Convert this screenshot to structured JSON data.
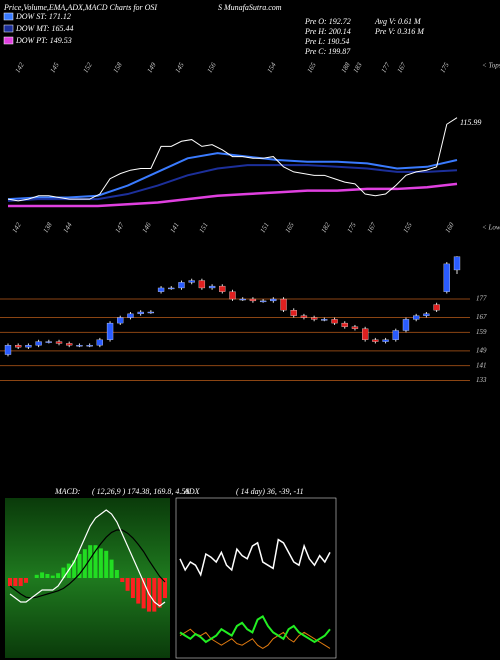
{
  "chart_data": {
    "type": "candlestick",
    "title": "Price,Volume,EMA,ADX,MACD Charts for OSI",
    "subtitle": "S MunafaSutra.com",
    "info": [
      "Pre  O: 192.72",
      "Pre  H: 200.14",
      "Pre  L: 190.54",
      "Pre  C: 199.87",
      "Avg V: 0.61 M",
      "Pre  V: 0.316 M"
    ],
    "series": [
      {
        "name": "DOW ST: 171.12",
        "color": "#3a7bff",
        "values": [
          152,
          153,
          153,
          154,
          160,
          168,
          176,
          179,
          177,
          175,
          174,
          174,
          173,
          170,
          171,
          175
        ]
      },
      {
        "name": "DOW MT: 165.44",
        "color": "#1c2f9a",
        "values": [
          151,
          152,
          152,
          152,
          155,
          160,
          166,
          170,
          172,
          172,
          172,
          171,
          170,
          168,
          168,
          169
        ]
      },
      {
        "name": "DOW PT: 149.53",
        "color": "#e040e0",
        "values": [
          148,
          148,
          148,
          148,
          149,
          150,
          152,
          154,
          155,
          156,
          157,
          157,
          158,
          158,
          159,
          161
        ]
      }
    ],
    "tops": [
      142,
      145,
      152,
      158,
      149,
      145,
      156,
      154,
      165,
      188,
      183,
      177,
      167,
      175
    ],
    "tops_label": "< Tops",
    "lows": [
      142,
      138,
      144,
      147,
      146,
      141,
      151,
      151,
      165,
      182,
      175,
      167,
      155,
      160
    ],
    "lows_label": "< Lows",
    "price_label": 115.99,
    "price_ylim": [
      128,
      222
    ],
    "open": [
      147,
      152,
      151,
      152,
      154,
      154,
      153,
      152,
      152,
      152,
      155,
      164,
      167,
      169,
      170,
      181,
      183,
      183,
      186,
      187,
      183,
      184,
      181,
      177,
      177,
      176,
      176,
      177,
      171,
      168,
      167,
      166,
      166,
      164,
      162,
      161,
      155,
      154,
      155,
      160,
      166,
      168,
      174,
      181,
      192.72
    ],
    "high": [
      153,
      153,
      153,
      155,
      155,
      155,
      154,
      153,
      153,
      156,
      165,
      168,
      170,
      171,
      171,
      184,
      184,
      187,
      188,
      188,
      185,
      185,
      182,
      178,
      178,
      177,
      178,
      178,
      172,
      169,
      168,
      167,
      167,
      165,
      163,
      162,
      156,
      156,
      161,
      167,
      169,
      170,
      175,
      197,
      200.14
    ],
    "low": [
      146,
      150,
      150,
      151,
      153,
      152,
      151,
      151,
      151,
      151,
      154,
      163,
      166,
      168,
      169,
      180,
      182,
      182,
      185,
      182,
      182,
      180,
      176,
      176,
      175,
      175,
      175,
      170,
      167,
      166,
      165,
      165,
      163,
      161,
      160,
      154,
      153,
      153,
      154,
      159,
      165,
      167,
      170,
      180,
      190.54
    ],
    "close": [
      152,
      151,
      152,
      154,
      154,
      153,
      152,
      152,
      152,
      155,
      164,
      167,
      169,
      170,
      170,
      183,
      183,
      186,
      187,
      183,
      184,
      181,
      177,
      177,
      176,
      176,
      177,
      171,
      168,
      167,
      166,
      166,
      164,
      162,
      161,
      155,
      154,
      155,
      160,
      166,
      168,
      169,
      171,
      196,
      199.87
    ],
    "ylim": [
      130,
      210
    ],
    "levels": [
      177,
      167,
      159,
      149,
      141,
      133
    ],
    "macd": {
      "label": "MACD:",
      "params": "( 12,26,9 ) 174.38, 169.8, 4.58",
      "ylim": [
        -10,
        10
      ],
      "macd": [
        -2,
        -2.5,
        -3,
        -3,
        -2.5,
        -2,
        -1.5,
        -1.5,
        -1.5,
        -1,
        0,
        1,
        2,
        3.5,
        5,
        6.5,
        7.5,
        8,
        8.5,
        8,
        7,
        5.5,
        4,
        2.5,
        1,
        -0.5,
        -2,
        -3,
        -3.5,
        -3
      ],
      "signal": [
        -1,
        -1.5,
        -2,
        -2.4,
        -2.5,
        -2.4,
        -2.2,
        -2,
        -1.8,
        -1.6,
        -1.3,
        -0.8,
        -0.2,
        0.5,
        1.4,
        2.4,
        3.4,
        4.3,
        5.1,
        5.7,
        6,
        6,
        5.6,
        5,
        4.2,
        3.3,
        2.2,
        1.2,
        0.2,
        -0.5
      ],
      "hist": [
        -1,
        -1,
        -1,
        -0.6,
        0,
        0.4,
        0.7,
        0.5,
        0.3,
        0.6,
        1.3,
        1.8,
        2.2,
        3,
        3.6,
        4.1,
        4.1,
        3.7,
        3.4,
        2.3,
        1,
        -0.5,
        -1.6,
        -2.5,
        -3.2,
        -3.8,
        -4.2,
        -4.2,
        -3.7,
        -2.5
      ]
    },
    "adx": {
      "label": "ADX",
      "params": "( 14  day) 36, -39, -11",
      "ylim": [
        0,
        100
      ],
      "adx": [
        62,
        55,
        60,
        58,
        52,
        65,
        63,
        60,
        66,
        58,
        55,
        68,
        64,
        62,
        70,
        72,
        60,
        58,
        56,
        74,
        72,
        66,
        60,
        58,
        70,
        62,
        58,
        64,
        60,
        66
      ],
      "plus_di": [
        16,
        14,
        12,
        15,
        13,
        10,
        12,
        14,
        18,
        16,
        14,
        20,
        22,
        18,
        16,
        24,
        26,
        20,
        16,
        14,
        12,
        18,
        20,
        16,
        14,
        12,
        10,
        12,
        14,
        18
      ],
      "minus_di": [
        14,
        16,
        18,
        15,
        14,
        16,
        12,
        10,
        8,
        10,
        12,
        9,
        8,
        10,
        12,
        8,
        6,
        8,
        12,
        14,
        16,
        12,
        10,
        14,
        16,
        14,
        12,
        10,
        8,
        6
      ]
    }
  }
}
